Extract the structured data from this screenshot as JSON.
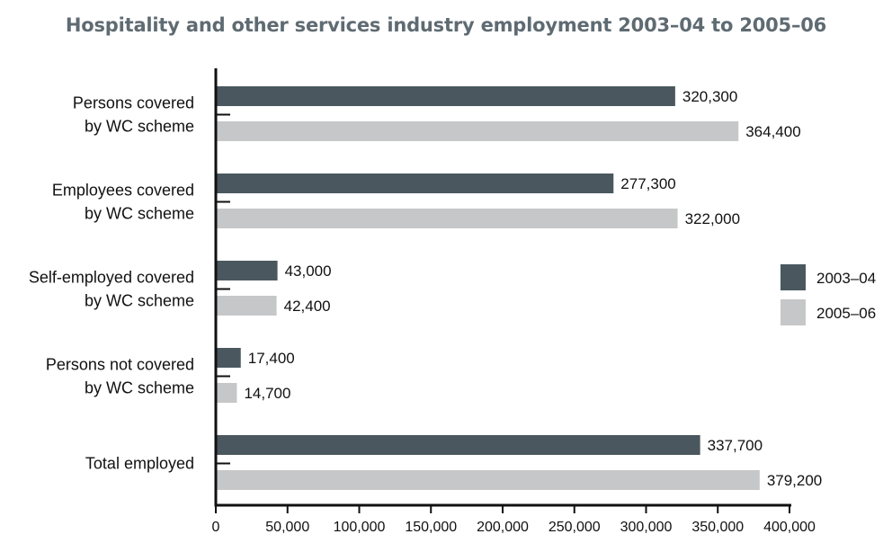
{
  "chart_data": {
    "type": "bar",
    "orientation": "horizontal",
    "title": "Hospitality and other services industry employment 2003–04 to 2005–06",
    "categories": [
      [
        "Persons covered",
        "by WC scheme"
      ],
      [
        "Employees covered",
        "by WC scheme"
      ],
      [
        "Self-employed covered",
        "by WC scheme"
      ],
      [
        "Persons not covered",
        "by WC scheme"
      ],
      [
        "Total employed"
      ]
    ],
    "series": [
      {
        "name": "2003–04",
        "color": "#4a575e",
        "values": [
          320300,
          277300,
          43000,
          17400,
          337700
        ],
        "labels": [
          "320,300",
          "277,300",
          "43,000",
          "17,400",
          "337,700"
        ]
      },
      {
        "name": "2005–06",
        "color": "#c6c7c8",
        "values": [
          364400,
          322000,
          42400,
          14700,
          379200
        ],
        "labels": [
          "364,400",
          "322,000",
          "42,400",
          "14,700",
          "379,200"
        ]
      }
    ],
    "xlim": [
      0,
      400000
    ],
    "xticks": [
      0,
      50000,
      100000,
      150000,
      200000,
      250000,
      300000,
      350000,
      400000
    ],
    "xtick_labels": [
      "0",
      "50,000",
      "100,000",
      "150,000",
      "200,000",
      "250,000",
      "300,000",
      "350,000",
      "400,000"
    ],
    "grid": false,
    "legend_position": "right"
  }
}
